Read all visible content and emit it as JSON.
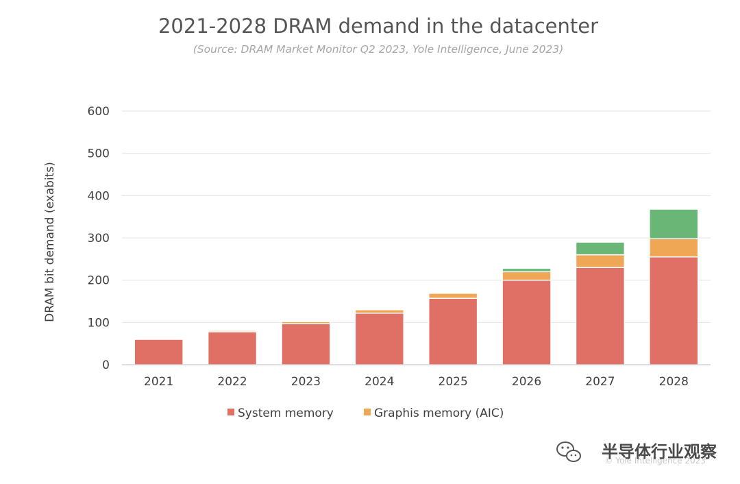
{
  "chart_data": {
    "type": "bar",
    "stacked": true,
    "title": "2021-2028 DRAM demand in the datacenter",
    "subtitle": "(Source: DRAM Market Monitor Q2 2023, Yole Intelligence, June 2023)",
    "xlabel": "",
    "ylabel": "DRAM bit demand (exabits)",
    "ylim": [
      0,
      600
    ],
    "yticks": [
      0,
      100,
      200,
      300,
      400,
      500,
      600
    ],
    "grid": true,
    "legend_position": "bottom",
    "categories": [
      "2021",
      "2022",
      "2023",
      "2024",
      "2025",
      "2026",
      "2027",
      "2028"
    ],
    "series": [
      {
        "name": "System memory",
        "color": "#e07065",
        "values": [
          60,
          78,
          97,
          122,
          157,
          200,
          230,
          255
        ]
      },
      {
        "name": "Graphis memory (AIC)",
        "color": "#f0a755",
        "values": [
          0,
          3,
          5,
          8,
          12,
          20,
          30,
          43
        ]
      },
      {
        "color": "#6ab677",
        "values": [
          0,
          0,
          0,
          0,
          0,
          8,
          30,
          70
        ]
      }
    ]
  },
  "watermark": {
    "text": "半导体行业观察",
    "copyright": "© Yole Intelligence 2023",
    "icon": "wechat-icon"
  }
}
